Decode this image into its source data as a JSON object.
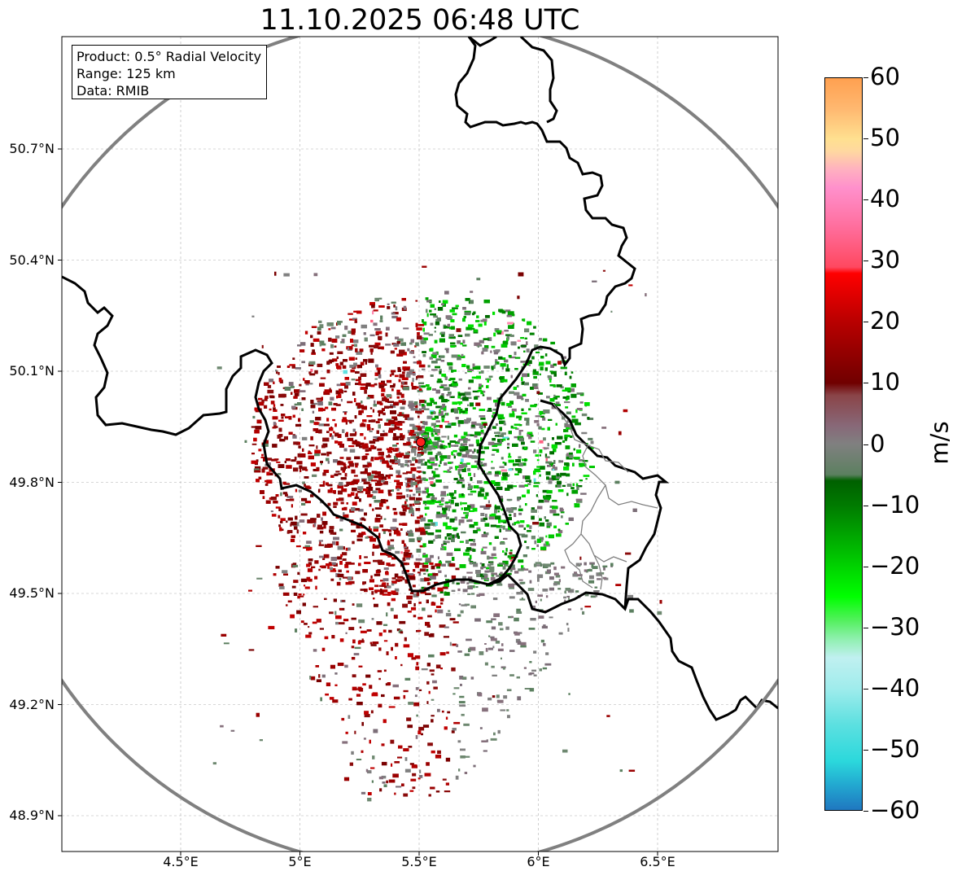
{
  "title": "11.10.2025 06:48 UTC",
  "info_box": {
    "product": "Product: 0.5° Radial Velocity",
    "range": "Range: 125 km",
    "data": "Data: RMIB"
  },
  "map": {
    "lon_range": [
      4.0,
      7.0
    ],
    "lat_range": [
      48.8,
      50.98
    ],
    "radar_site": {
      "lon": 5.505,
      "lat": 49.914
    },
    "range_ring_color": "#808080",
    "border_color": "#000000",
    "subregion_border_color": "#808080",
    "grid": true
  },
  "axes": {
    "lat_ticks": [
      {
        "value": 50.7,
        "label": "50.7°N"
      },
      {
        "value": 50.4,
        "label": "50.4°N"
      },
      {
        "value": 50.1,
        "label": "50.1°N"
      },
      {
        "value": 49.8,
        "label": "49.8°N"
      },
      {
        "value": 49.5,
        "label": "49.5°N"
      },
      {
        "value": 49.2,
        "label": "49.2°N"
      },
      {
        "value": 48.9,
        "label": "48.9°N"
      }
    ],
    "lon_ticks": [
      {
        "value": 4.5,
        "label": "4.5°E"
      },
      {
        "value": 5.0,
        "label": "5°E"
      },
      {
        "value": 5.5,
        "label": "5.5°E"
      },
      {
        "value": 6.0,
        "label": "6°E"
      },
      {
        "value": 6.5,
        "label": "6.5°E"
      }
    ]
  },
  "colorbar": {
    "unit": "m/s",
    "min": -60,
    "max": 60,
    "ticks": [
      {
        "value": 60,
        "label": "60"
      },
      {
        "value": 50,
        "label": "50"
      },
      {
        "value": 40,
        "label": "40"
      },
      {
        "value": 30,
        "label": "30"
      },
      {
        "value": 20,
        "label": "20"
      },
      {
        "value": 10,
        "label": "10"
      },
      {
        "value": 0,
        "label": "0"
      },
      {
        "value": -10,
        "label": "−10"
      },
      {
        "value": -20,
        "label": "−20"
      },
      {
        "value": -30,
        "label": "−30"
      },
      {
        "value": -40,
        "label": "−40"
      },
      {
        "value": -50,
        "label": "−50"
      },
      {
        "value": -60,
        "label": "−60"
      }
    ],
    "stops": [
      {
        "value": -60,
        "color": "#1f77c0"
      },
      {
        "value": -56,
        "color": "#22a7d0"
      },
      {
        "value": -52,
        "color": "#2bd8dc"
      },
      {
        "value": -46,
        "color": "#5ce0e0"
      },
      {
        "value": -40,
        "color": "#a0ecec"
      },
      {
        "value": -35,
        "color": "#c0f0f0"
      },
      {
        "value": -32,
        "color": "#90f0b0"
      },
      {
        "value": -29,
        "color": "#55f060"
      },
      {
        "value": -25,
        "color": "#00ff00"
      },
      {
        "value": -18,
        "color": "#00c000"
      },
      {
        "value": -10,
        "color": "#007a00"
      },
      {
        "value": -6,
        "color": "#006000"
      },
      {
        "value": -5,
        "color": "#5c8060"
      },
      {
        "value": 0,
        "color": "#808080"
      },
      {
        "value": 3,
        "color": "#886878"
      },
      {
        "value": 8,
        "color": "#8a4448"
      },
      {
        "value": 10,
        "color": "#700000"
      },
      {
        "value": 20,
        "color": "#b80000"
      },
      {
        "value": 28,
        "color": "#ff0000"
      },
      {
        "value": 29,
        "color": "#ff4860"
      },
      {
        "value": 36,
        "color": "#ff70a0"
      },
      {
        "value": 42,
        "color": "#ff90cc"
      },
      {
        "value": 45,
        "color": "#ffb0c0"
      },
      {
        "value": 48,
        "color": "#ffd8a0"
      },
      {
        "value": 50,
        "color": "#ffe090"
      },
      {
        "value": 55,
        "color": "#ffb870"
      },
      {
        "value": 60,
        "color": "#ffa050"
      }
    ]
  }
}
